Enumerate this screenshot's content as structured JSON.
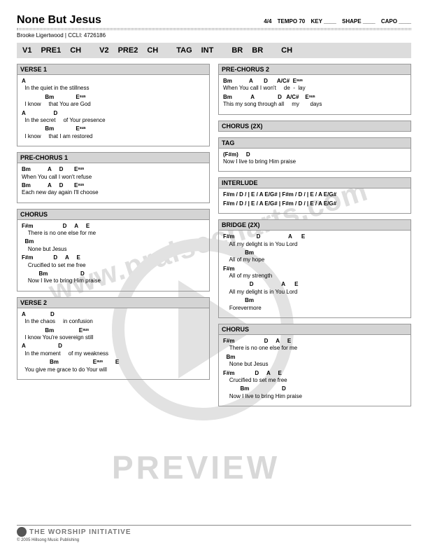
{
  "title": "None But Jesus",
  "meta": {
    "sig": "4/4",
    "tempo": "TEMPO 70",
    "key": "KEY ____",
    "shape": "SHAPE ____",
    "capo": "CAPO ____"
  },
  "credits": "Brooke Ligertwood  | CCLI: 4726186",
  "roadmap": [
    "V1",
    "PRE1",
    "CH",
    "",
    "V2",
    "PRE2",
    "CH",
    "",
    "TAG",
    "INT",
    "",
    "BR",
    "BR",
    "",
    "CH"
  ],
  "left": [
    {
      "head": "VERSE 1",
      "lines": [
        [
          "A",
          "  In the quiet in the stillness"
        ],
        [
          "               Bm              E^sus",
          "  I know     that You are God"
        ],
        [
          "A                  D",
          "  In the secret     of Your presence"
        ],
        [
          "               Bm              E^sus",
          "  I know     that I am restored"
        ]
      ]
    },
    {
      "head": "PRE-CHORUS 1",
      "lines": [
        [
          "Bm           A     D       E^sus",
          "When You call I won't refuse"
        ],
        [
          "Bm           A     D       E^sus",
          "Each new day again I'll choose"
        ]
      ]
    },
    {
      "head": "CHORUS",
      "lines": [
        [
          "F#m                   D     A     E",
          "    There is no one else for me"
        ],
        [
          "  Bm",
          "    None but Jesus"
        ],
        [
          "F#m             D     A     E",
          "    Crucified to set me free"
        ],
        [
          "           Bm                     D",
          "    Now I live to bring Him praise"
        ]
      ]
    },
    {
      "head": "VERSE 2",
      "lines": [
        [
          "A                D",
          "  In the chaos     in confusion"
        ],
        [
          "               Bm                E^sus",
          "  I know You're sovereign still"
        ],
        [
          "A                     D",
          "  In the moment     of my weakness"
        ],
        [
          "                  Bm                      E^sus        E",
          "  You give me grace to do Your will"
        ]
      ]
    }
  ],
  "right": [
    {
      "head": "PRE-CHORUS 2",
      "lines": [
        [
          "Bm           A       D      A/C#  E^sus",
          "When You call I won't     de  -  lay"
        ],
        [
          "Bm            A               D   A/C#    E^sus",
          "This my song through all     my       days"
        ]
      ]
    },
    {
      "head": "CHORUS (2X)",
      "lines": []
    },
    {
      "head": "TAG",
      "lines": [
        [
          "(F#m)     D",
          "Now I live to bring Him praise"
        ]
      ]
    },
    {
      "head": "INTERLUDE",
      "lines": [
        [
          "F#m / D / | E / A E/G# | F#m / D / | E / A E/G#",
          ""
        ],
        [
          "F#m / D / | E / A E/G# | F#m / D / | E / A E/G#",
          ""
        ]
      ]
    },
    {
      "head": "BRIDGE (2X)",
      "lines": [
        [
          "F#m              D                  A      E",
          "    All my delight is in You Lord"
        ],
        [
          "              Bm",
          "    All of my hope"
        ],
        [
          "F#m",
          "    All of my strength"
        ],
        [
          "                 D                  A      E",
          "    All my delight is in You Lord"
        ],
        [
          "              Bm",
          "    Forevermore"
        ]
      ]
    },
    {
      "head": "CHORUS",
      "lines": [
        [
          "F#m                   D     A     E",
          "    There is no one else for me"
        ],
        [
          "  Bm",
          "    None but Jesus"
        ],
        [
          "F#m             D     A     E",
          "    Crucified to set me free"
        ],
        [
          "           Bm                     D",
          "    Now I live to bring Him praise"
        ]
      ]
    }
  ],
  "footer": {
    "brand": "THE WORSHIP INITIATIVE",
    "copy": "© 2005 Hillsong Music Publishing"
  },
  "wm": {
    "url": "www.praisecharts.com",
    "preview": "PREVIEW"
  }
}
